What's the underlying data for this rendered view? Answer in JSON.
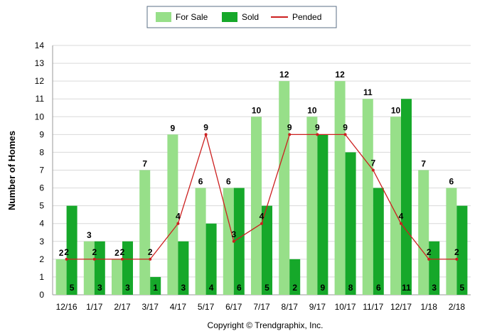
{
  "chart_data": {
    "type": "bar",
    "categories": [
      "12/16",
      "1/17",
      "2/17",
      "3/17",
      "4/17",
      "5/17",
      "6/17",
      "7/17",
      "8/17",
      "9/17",
      "10/17",
      "11/17",
      "12/17",
      "1/18",
      "2/18"
    ],
    "series": [
      {
        "name": "For Sale",
        "kind": "bar",
        "color": "#97df89",
        "values": [
          2,
          3,
          2,
          7,
          9,
          6,
          6,
          10,
          12,
          10,
          12,
          11,
          10,
          7,
          6
        ]
      },
      {
        "name": "Sold",
        "kind": "bar",
        "color": "#16a82a",
        "values": [
          5,
          3,
          3,
          1,
          3,
          4,
          6,
          5,
          2,
          9,
          8,
          6,
          11,
          3,
          5
        ]
      },
      {
        "name": "Pended",
        "kind": "line",
        "color": "#cc1f1f",
        "values": [
          2,
          2,
          2,
          2,
          4,
          9,
          3,
          4,
          9,
          9,
          9,
          7,
          4,
          2,
          2
        ]
      }
    ],
    "ylabel": "Number of Homes",
    "xlabel": "",
    "ylim": [
      0,
      14
    ],
    "yticks": [
      0,
      1,
      2,
      3,
      4,
      5,
      6,
      7,
      8,
      9,
      10,
      11,
      12,
      13,
      14
    ],
    "grid": true,
    "legend": "top-center"
  },
  "footer": "Copyright © Trendgraphix, Inc."
}
